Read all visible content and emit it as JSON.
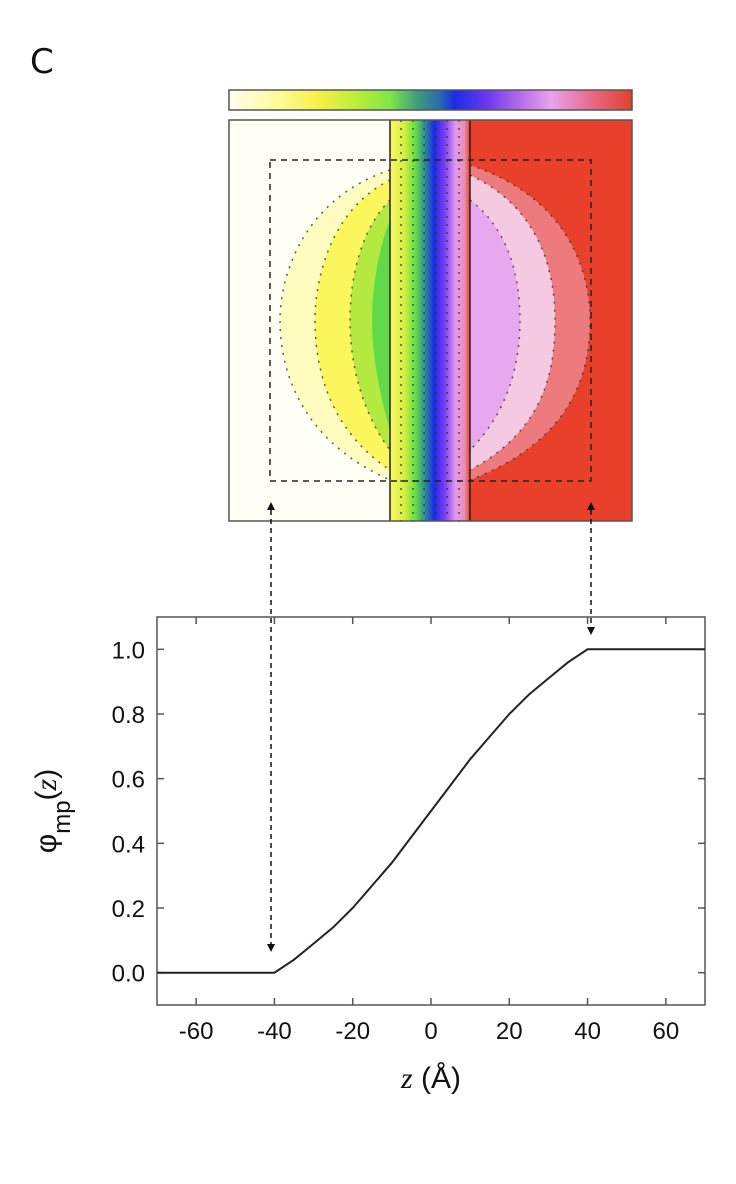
{
  "panel_label": "C",
  "colorbar": {
    "stops": [
      "#fffff2",
      "#fdf96a",
      "#8be83f",
      "#2f8a86",
      "#1a2ce6",
      "#7a3cf0",
      "#e9a0ee",
      "#e64040"
    ],
    "colors": {
      "low": "#fffff2",
      "mid": "#1a2ce6",
      "high": "#e8402a"
    }
  },
  "heatmap": {
    "left_region_color": "#fffff5",
    "right_region_color": "#e8402a",
    "membrane_left_z": -10,
    "membrane_right_z": 10
  },
  "chart_data": {
    "type": "line",
    "title": "",
    "xlabel": "z (Å)",
    "ylabel": "φmp(z)",
    "xlim": [
      -70,
      70
    ],
    "ylim": [
      -0.1,
      1.1
    ],
    "xticks": [
      -60,
      -40,
      -20,
      0,
      20,
      40,
      60
    ],
    "xtick_labels": [
      "-60",
      "-40",
      "-20",
      "0",
      "20",
      "40",
      "60"
    ],
    "yticks": [
      0.0,
      0.2,
      0.4,
      0.6,
      0.8,
      1.0
    ],
    "ytick_labels": [
      "0.0",
      "0.2",
      "0.4",
      "0.6",
      "0.8",
      "1.0"
    ],
    "grid": false,
    "legend": null,
    "series": [
      {
        "name": "φmp(z)",
        "x": [
          -70,
          -60,
          -50,
          -40,
          -35,
          -30,
          -25,
          -20,
          -15,
          -10,
          -5,
          0,
          5,
          10,
          15,
          20,
          25,
          30,
          35,
          40,
          50,
          60,
          70
        ],
        "y": [
          0,
          0,
          0,
          0,
          0.04,
          0.09,
          0.14,
          0.2,
          0.27,
          0.34,
          0.42,
          0.5,
          0.58,
          0.66,
          0.73,
          0.8,
          0.86,
          0.91,
          0.96,
          1.0,
          1.0,
          1.0,
          1.0
        ]
      }
    ],
    "annotations": [
      {
        "type": "dashed-arrow",
        "from": "heatmap bottom-left dashed box edge",
        "to_z": -40,
        "to_y": 0.08,
        "label": ""
      },
      {
        "type": "dashed-arrow",
        "from": "heatmap bottom-right dashed box edge",
        "to_z": 40,
        "to_y": 1.05,
        "label": ""
      }
    ]
  }
}
